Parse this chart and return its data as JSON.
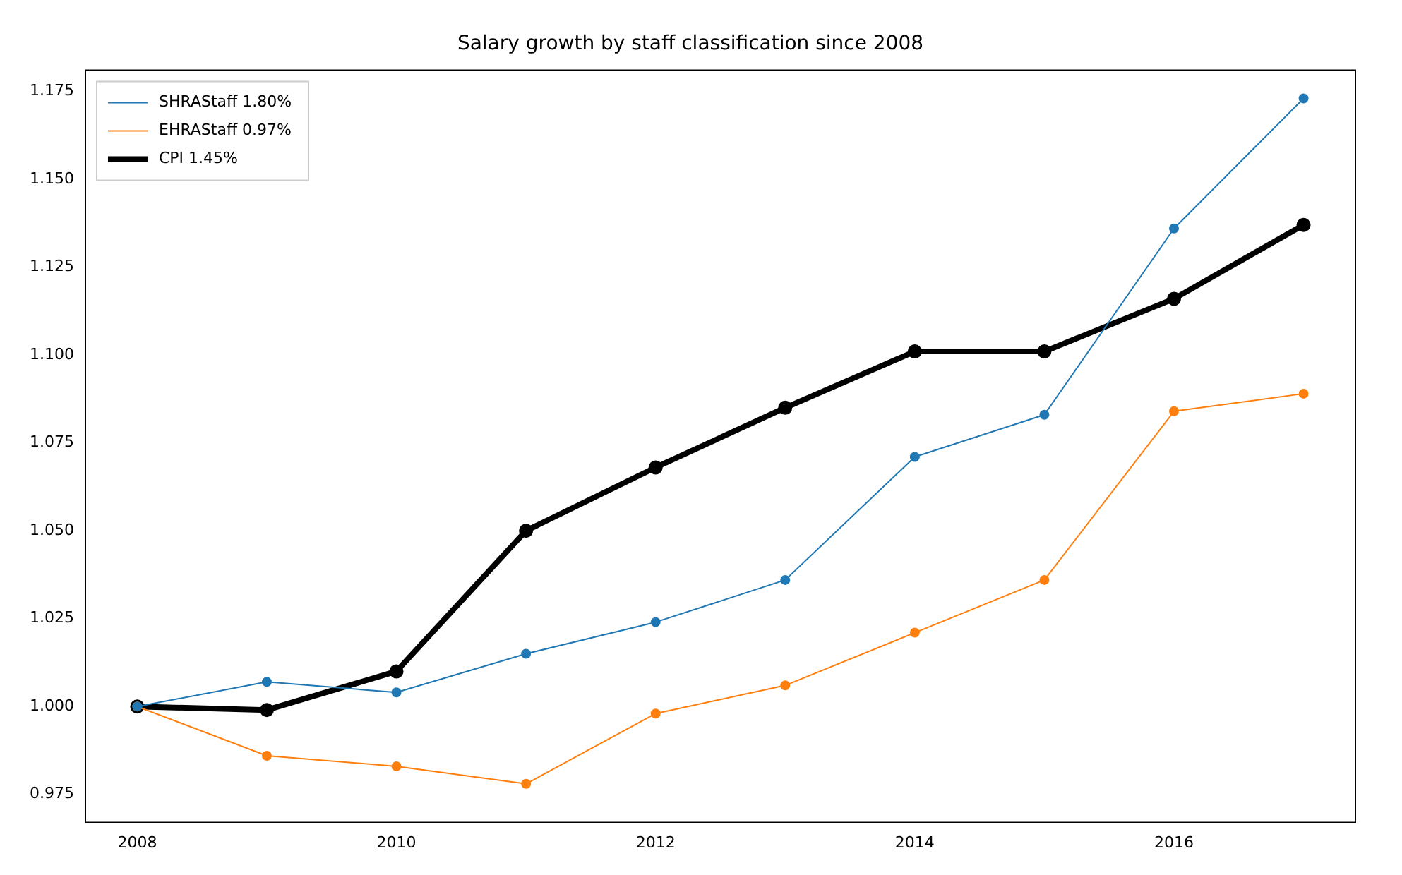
{
  "chart_data": {
    "type": "line",
    "title": "Salary growth by staff classification since 2008",
    "x": [
      2008,
      2009,
      2010,
      2011,
      2012,
      2013,
      2014,
      2015,
      2016,
      2017
    ],
    "series": [
      {
        "name": "SHRAStaff 1.80%",
        "color": "#1f77b4",
        "values": [
          1.0,
          1.007,
          1.004,
          1.015,
          1.024,
          1.036,
          1.071,
          1.083,
          1.136,
          1.173
        ]
      },
      {
        "name": "EHRAStaff 0.97%",
        "color": "#ff7f0e",
        "values": [
          1.0,
          0.986,
          0.983,
          0.978,
          0.998,
          1.006,
          1.021,
          1.036,
          1.084,
          1.089
        ]
      },
      {
        "name": "CPI 1.45%",
        "color": "#000000",
        "values": [
          1.0,
          0.999,
          1.01,
          1.05,
          1.068,
          1.085,
          1.101,
          1.101,
          1.116,
          1.137
        ]
      }
    ],
    "xlim": [
      2007.6,
      2017.4
    ],
    "xticks": [
      2008,
      2010,
      2012,
      2014,
      2016
    ],
    "ylim": [
      0.967,
      1.181
    ],
    "yticks": [
      0.975,
      {
        "value": 1,
        "label": "1.000"
      },
      1.025,
      {
        "value": 1.05,
        "label": "1.050"
      },
      1.075,
      {
        "value": 1.1,
        "label": "1.100"
      },
      1.125,
      {
        "value": 1.15,
        "label": "1.150"
      },
      1.175
    ],
    "grid": false,
    "legend": "top left",
    "marker": "circle",
    "line_style": "solid"
  }
}
